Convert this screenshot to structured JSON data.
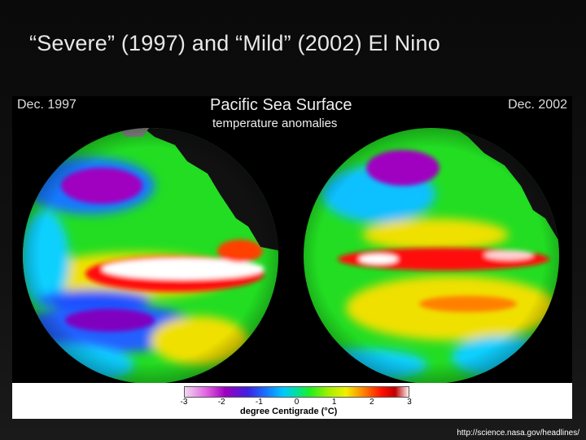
{
  "slide": {
    "title": "“Severe” (1997) and “Mild” (2002) El Nino",
    "credit": "http://science.nasa.gov/headlines/"
  },
  "figure": {
    "title": "Pacific Sea Surface",
    "subtitle": "temperature anomalies",
    "left_date": "Dec. 1997",
    "right_date": "Dec. 2002",
    "scale": {
      "ticks": [
        "-3",
        "-2",
        "-1",
        "0",
        "1",
        "2",
        "3"
      ],
      "caption": "degree Centigrade (°C)"
    }
  },
  "colors": {
    "slide_background": "#0a0a0a",
    "title_text": "#e8e8e8",
    "anomaly_hot": "#ff1010",
    "anomaly_extreme": "#ffffff",
    "anomaly_neutral": "#20e020",
    "anomaly_cold": "#a000c0"
  }
}
